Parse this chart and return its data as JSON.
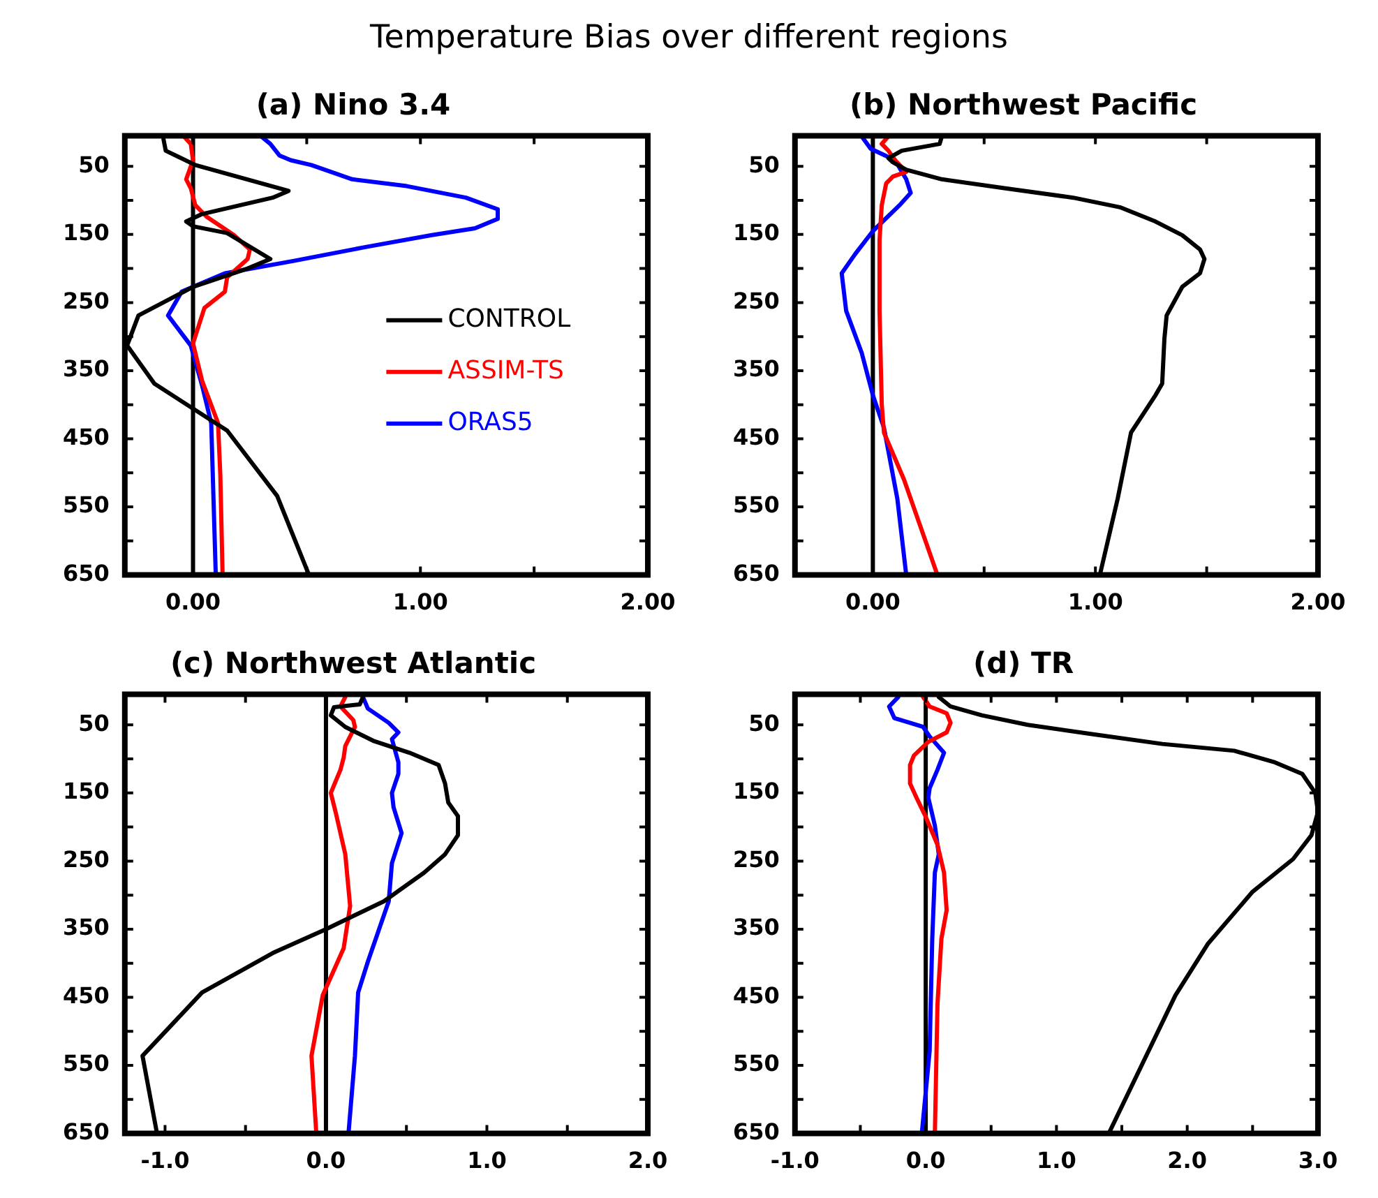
{
  "chart_data": [
    {
      "type": "other",
      "title": "Temperature Bias over different regions"
    },
    {
      "type": "line",
      "title": "(a) Nino 3.4",
      "legend": "right",
      "xlim": [
        -0.3,
        2.0
      ],
      "ylim": [
        650,
        5
      ],
      "xticks": [
        {
          "value": 0,
          "label": "0.00"
        },
        {
          "value": 0.5,
          "label": null
        },
        {
          "value": 1,
          "label": "1.00"
        },
        {
          "value": 1.5,
          "label": null
        },
        {
          "value": 2,
          "label": "2.00"
        }
      ],
      "yticks": [
        50,
        {
          "value": 100,
          "label": null
        },
        150,
        {
          "value": 200,
          "label": null
        },
        250,
        {
          "value": 300,
          "label": null
        },
        350,
        {
          "value": 400,
          "label": null
        },
        450,
        {
          "value": 500,
          "label": null
        },
        550,
        {
          "value": 600,
          "label": null
        },
        650
      ],
      "ref_lines": [
        {
          "axis": "x",
          "value": 0,
          "color": "#000000"
        }
      ],
      "series": [
        {
          "name": "CONTROL",
          "color": "#000000",
          "x": [
            -0.13,
            -0.12,
            0.01,
            0.42,
            0.35,
            0.04,
            -0.03,
            0,
            0.15,
            0.34,
            0.24,
            0,
            -0.24,
            -0.29,
            -0.17,
            0.15,
            0.37,
            0.51
          ],
          "values": [
            10,
            27,
            48,
            86,
            96,
            120,
            131,
            138,
            148,
            186,
            200,
            227,
            269,
            313,
            369,
            438,
            534,
            650
          ]
        },
        {
          "name": "ASSIM-TS",
          "color": "#ff0000",
          "x": [
            -0.04,
            -0.01,
            0,
            -0.03,
            -0.01,
            0.01,
            0.06,
            0.18,
            0.25,
            0.24,
            0.15,
            0.14,
            0.05,
            0,
            0.04,
            0.11,
            0.12,
            0.13
          ],
          "values": [
            6,
            17,
            41,
            69,
            82,
            107,
            124,
            151,
            172,
            186,
            213,
            234,
            258,
            310,
            365,
            427,
            503,
            650
          ]
        },
        {
          "name": "ORAS5",
          "color": "#0000ff",
          "x": [
            0.3,
            0.34,
            0.38,
            0.43,
            0.52,
            0.7,
            0.94,
            1.2,
            1.34,
            1.34,
            1.24,
            1.05,
            0.75,
            0.44,
            0.14,
            -0.05,
            -0.11,
            -0.01,
            0.04,
            0.08,
            0.09,
            0.1
          ],
          "values": [
            6,
            17,
            34,
            41,
            48,
            69,
            79,
            96,
            113,
            127,
            141,
            151,
            169,
            189,
            207,
            234,
            269,
            313,
            372,
            427,
            538,
            650
          ]
        }
      ]
    },
    {
      "type": "line",
      "title": "(b) Northwest Pacific",
      "xlim": [
        -0.35,
        2.0
      ],
      "ylim": [
        650,
        5
      ],
      "xticks": [
        {
          "value": 0,
          "label": "0.00"
        },
        {
          "value": 0.5,
          "label": null
        },
        {
          "value": 1,
          "label": "1.00"
        },
        {
          "value": 1.5,
          "label": null
        },
        {
          "value": 2,
          "label": "2.00"
        }
      ],
      "yticks": [
        50,
        {
          "value": 100,
          "label": null
        },
        150,
        {
          "value": 200,
          "label": null
        },
        250,
        {
          "value": 300,
          "label": null
        },
        350,
        {
          "value": 400,
          "label": null
        },
        450,
        {
          "value": 500,
          "label": null
        },
        550,
        {
          "value": 600,
          "label": null
        },
        650
      ],
      "ref_lines": [
        {
          "axis": "x",
          "value": 0,
          "color": "#000000"
        }
      ],
      "series": [
        {
          "color": "#000000",
          "x": [
            0.31,
            0.3,
            0.13,
            0.07,
            0.09,
            0.15,
            0.31,
            0.59,
            0.9,
            1.11,
            1.27,
            1.39,
            1.47,
            1.49,
            1.47,
            1.39,
            1.32,
            1.31,
            1.3,
            1.27,
            1.16,
            1.1,
            1.02
          ],
          "values": [
            6,
            17,
            27,
            38,
            44,
            55,
            69,
            82,
            96,
            110,
            131,
            151,
            172,
            186,
            207,
            227,
            269,
            303,
            369,
            386,
            441,
            538,
            650
          ]
        },
        {
          "color": "#ff0000",
          "x": [
            0.07,
            0.04,
            0.07,
            0.1,
            0.15,
            0.09,
            0.06,
            0.04,
            0.03,
            0.03,
            0.04,
            0.05,
            0.14,
            0.29
          ],
          "values": [
            6,
            17,
            27,
            41,
            58,
            65,
            75,
            107,
            158,
            262,
            400,
            441,
            510,
            650
          ]
        },
        {
          "color": "#0000ff",
          "x": [
            -0.05,
            -0.01,
            0.1,
            0.15,
            0.17,
            0.12,
            0,
            -0.08,
            -0.14,
            -0.12,
            -0.05,
            0,
            0.05,
            0.11,
            0.15
          ],
          "values": [
            6,
            24,
            41,
            69,
            89,
            107,
            145,
            179,
            207,
            262,
            324,
            386,
            434,
            538,
            650
          ]
        }
      ]
    },
    {
      "type": "line",
      "title": "(c) Northwest Atlantic",
      "xlim": [
        -1.25,
        2.0
      ],
      "ylim": [
        650,
        5
      ],
      "xticks": [
        {
          "value": -1,
          "label": "-1.0"
        },
        {
          "value": -0.5,
          "label": null
        },
        {
          "value": 0,
          "label": "0.0"
        },
        {
          "value": 0.5,
          "label": null
        },
        {
          "value": 1,
          "label": "1.0"
        },
        {
          "value": 1.5,
          "label": null
        },
        {
          "value": 2,
          "label": "2.0"
        }
      ],
      "yticks": [
        50,
        {
          "value": 100,
          "label": null
        },
        150,
        {
          "value": 200,
          "label": null
        },
        250,
        {
          "value": 300,
          "label": null
        },
        350,
        {
          "value": 400,
          "label": null
        },
        450,
        {
          "value": 500,
          "label": null
        },
        550,
        {
          "value": 600,
          "label": null
        },
        650
      ],
      "ref_lines": [
        {
          "axis": "x",
          "value": 0,
          "color": "#000000"
        }
      ],
      "series": [
        {
          "color": "#000000",
          "x": [
            0.23,
            0.21,
            0.05,
            0.03,
            0.12,
            0.3,
            0.52,
            0.7,
            0.74,
            0.76,
            0.82,
            0.82,
            0.74,
            0.61,
            0.36,
            0,
            -0.33,
            -0.77,
            -1.14,
            -1.05
          ],
          "values": [
            9,
            20,
            24,
            36,
            53,
            74,
            91,
            109,
            136,
            164,
            184,
            212,
            240,
            267,
            309,
            350,
            385,
            443,
            536,
            650
          ]
        },
        {
          "color": "#ff0000",
          "x": [
            0.12,
            0.09,
            0.17,
            0.18,
            0.15,
            0.12,
            0.11,
            0.09,
            0.03,
            0.06,
            0.12,
            0.15,
            0.11,
            -0.02,
            -0.09,
            -0.06
          ],
          "values": [
            9,
            23,
            43,
            53,
            67,
            81,
            98,
            116,
            150,
            178,
            240,
            316,
            378,
            447,
            536,
            650
          ]
        },
        {
          "color": "#0000ff",
          "x": [
            0.23,
            0.26,
            0.39,
            0.45,
            0.41,
            0.45,
            0.45,
            0.41,
            0.42,
            0.47,
            0.41,
            0.39,
            0.33,
            0.26,
            0.2,
            0.18,
            0.14
          ],
          "values": [
            9,
            26,
            47,
            61,
            71,
            105,
            122,
            150,
            171,
            209,
            253,
            309,
            350,
            398,
            443,
            536,
            650
          ]
        }
      ]
    },
    {
      "type": "line",
      "title": "(d) TR",
      "xlim": [
        -1,
        3
      ],
      "ylim": [
        650,
        5
      ],
      "xticks": [
        {
          "value": -1,
          "label": "-1.0"
        },
        {
          "value": -0.5,
          "label": null
        },
        {
          "value": 0,
          "label": "0.0"
        },
        {
          "value": 0.5,
          "label": null
        },
        {
          "value": 1,
          "label": "1.0"
        },
        {
          "value": 1.5,
          "label": null
        },
        {
          "value": 2,
          "label": "2.0"
        },
        {
          "value": 2.5,
          "label": null
        },
        {
          "value": 3,
          "label": "3.0"
        }
      ],
      "yticks": [
        50,
        {
          "value": 100,
          "label": null
        },
        150,
        {
          "value": 200,
          "label": null
        },
        250,
        {
          "value": 300,
          "label": null
        },
        350,
        {
          "value": 400,
          "label": null
        },
        450,
        {
          "value": 500,
          "label": null
        },
        550,
        {
          "value": 600,
          "label": null
        },
        650
      ],
      "ref_lines": [
        {
          "axis": "x",
          "value": 0,
          "color": "#000000"
        }
      ],
      "series": [
        {
          "color": "#000000",
          "x": [
            0.1,
            0.19,
            0.43,
            0.78,
            1.29,
            1.81,
            2.36,
            2.67,
            2.88,
            2.98,
            3.0,
            2.95,
            2.81,
            2.5,
            2.16,
            1.91,
            1.4
          ],
          "values": [
            9,
            23,
            36,
            50,
            64,
            78,
            88,
            105,
            122,
            150,
            178,
            212,
            247,
            295,
            371,
            447,
            650
          ]
        },
        {
          "color": "#ff0000",
          "x": [
            -0.02,
            0.03,
            0.16,
            0.19,
            0.16,
            0.02,
            -0.09,
            -0.12,
            -0.12,
            -0.07,
            0,
            0.09,
            0.14,
            0.16,
            0.12,
            0.09,
            0.07
          ],
          "values": [
            9,
            23,
            33,
            47,
            61,
            75,
            95,
            109,
            136,
            157,
            185,
            226,
            267,
            322,
            364,
            460,
            650
          ]
        },
        {
          "color": "#0000ff",
          "x": [
            -0.21,
            -0.28,
            -0.24,
            -0.12,
            -0.02,
            0.03,
            0.14,
            0.09,
            0.03,
            0.02,
            0.07,
            0.1,
            0.07,
            0.05,
            0.03,
            -0.03
          ],
          "values": [
            9,
            23,
            40,
            47,
            53,
            67,
            91,
            116,
            143,
            157,
            198,
            240,
            267,
            364,
            529,
            650
          ]
        }
      ]
    }
  ]
}
